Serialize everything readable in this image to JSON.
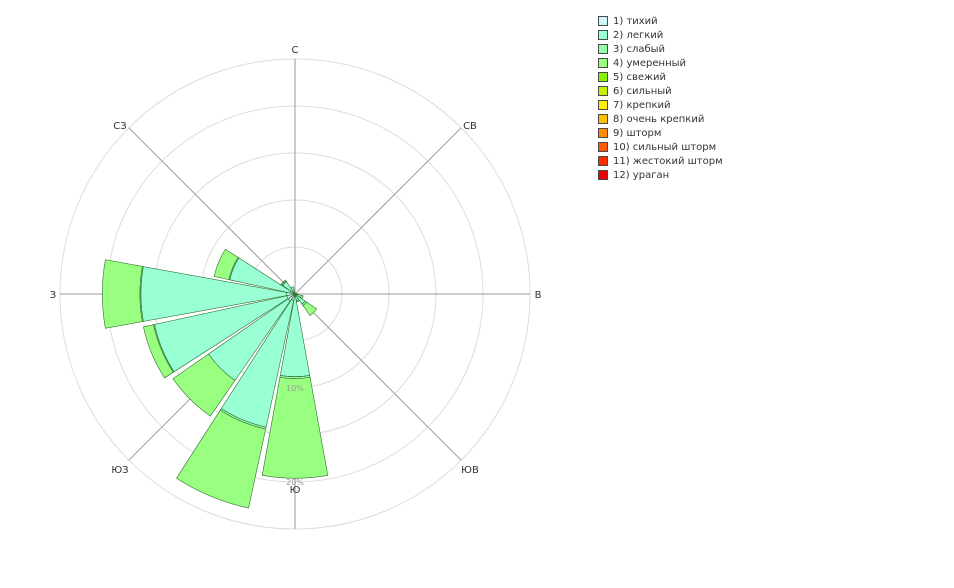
{
  "chart_data": {
    "type": "wind-rose",
    "directions": [
      "С",
      "СВ",
      "В",
      "ЮВ",
      "Ю",
      "ЮЗ",
      "З",
      "СЗ"
    ],
    "radial_ticks": [
      "10%",
      "20%"
    ],
    "radial_max": 25,
    "legend": [
      {
        "label": "1) тихий",
        "color": "#cff6fb"
      },
      {
        "label": "2) легкий",
        "color": "#99ffd4"
      },
      {
        "label": "3) слабый",
        "color": "#99fcaa"
      },
      {
        "label": "4) умеренный",
        "color": "#99ff80"
      },
      {
        "label": "5) свежий",
        "color": "#8cf000"
      },
      {
        "label": "6) сильный",
        "color": "#c8f000"
      },
      {
        "label": "7) крепкий",
        "color": "#fff000"
      },
      {
        "label": "8) очень крепкий",
        "color": "#ffc000"
      },
      {
        "label": "9) шторм",
        "color": "#ff8c00"
      },
      {
        "label": "10) сильный шторм",
        "color": "#ff5a00"
      },
      {
        "label": "11) жестокий шторм",
        "color": "#ff2d00"
      },
      {
        "label": "12) ураган",
        "color": "#e60000"
      }
    ],
    "series": [
      {
        "name": "1) тихий",
        "values": [
          0.05,
          0.05,
          0.05,
          0.1,
          0.3,
          0.7,
          0.1,
          0.05,
          0.3,
          0.7,
          0.9,
          0.9,
          0.9,
          0.5,
          0.4,
          0.2
        ]
      },
      {
        "name": "2) легкий",
        "values": [
          0,
          0,
          0,
          0,
          0,
          0.2,
          1.2,
          0.7,
          8.5,
          13.8,
          10.3,
          14.4,
          15.5,
          6.6,
          1.2,
          0.6
        ]
      },
      {
        "name": "3) слабый",
        "values": [
          0,
          0,
          0,
          0,
          0,
          0,
          0.2,
          0,
          0.2,
          0.2,
          0,
          0.1,
          0.1,
          0.1,
          0.1,
          0
        ]
      },
      {
        "name": "4) умеренный",
        "values": [
          0,
          0,
          0,
          0,
          0,
          0,
          1.3,
          0.1,
          10.6,
          8.6,
          4.6,
          1.1,
          4.0,
          1.6,
          0.1,
          0
        ]
      }
    ]
  }
}
